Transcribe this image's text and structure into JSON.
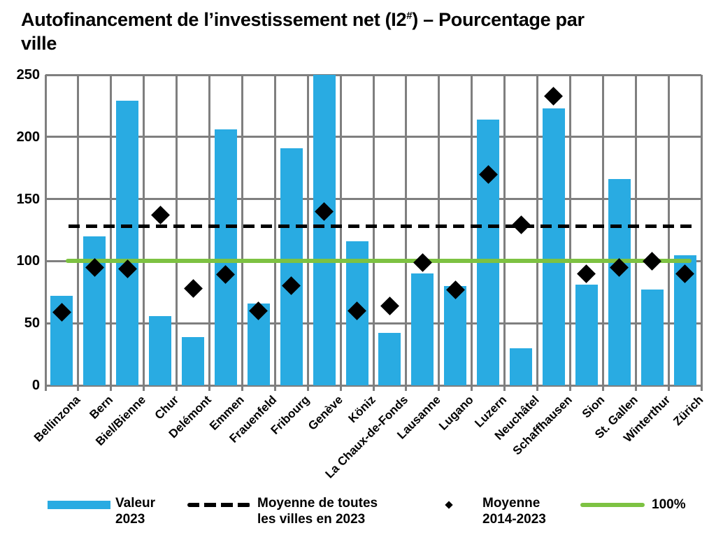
{
  "title": {
    "line1_pre": "Autofinancement de l’investissement net (I2",
    "line1_sup": "#",
    "line1_post": ") – Pourcentage par",
    "line2": "ville"
  },
  "y_axis": {
    "ticks": [
      "0",
      "50",
      "100",
      "150",
      "200",
      "250"
    ]
  },
  "chart_data": {
    "type": "bar",
    "title": "Autofinancement de l’investissement net (I2#) – Pourcentage par ville",
    "categories": [
      "Bellinzona",
      "Bern",
      "Biel/Bienne",
      "Chur",
      "Delémont",
      "Emmen",
      "Frauenfeld",
      "Fribourg",
      "Genève",
      "Köniz",
      "La Chaux-de-Fonds",
      "Lausanne",
      "Lugano",
      "Luzern",
      "Neuchâtel",
      "Schaffhausen",
      "Sion",
      "St. Gallen",
      "Winterthur",
      "Zürich"
    ],
    "series": [
      {
        "name": "Valeur 2023",
        "type": "bar",
        "color": "#29ABE2",
        "values": [
          72,
          120,
          229,
          56,
          39,
          206,
          66,
          191,
          250,
          116,
          42,
          90,
          80,
          214,
          30,
          223,
          81,
          166,
          77,
          105
        ],
        "clipped_at_max": [
          "Genève"
        ]
      },
      {
        "name": "Moyenne 2014-2023",
        "type": "scatter-diamond",
        "color": "#000000",
        "values": [
          59,
          95,
          94,
          137,
          78,
          89,
          60,
          80,
          140,
          60,
          64,
          99,
          77,
          170,
          129,
          233,
          90,
          95,
          100,
          90
        ]
      }
    ],
    "reference_lines": [
      {
        "name": "Moyenne de toutes les villes en 2023",
        "value": 128,
        "style": "dashed",
        "color": "#000000"
      },
      {
        "name": "100%",
        "value": 100,
        "style": "solid",
        "color": "#7DC242"
      }
    ],
    "ylim": [
      0,
      250
    ],
    "ytick_step": 50,
    "grid": true,
    "legend_position": "bottom"
  },
  "legend": {
    "items": [
      {
        "swatch": "bar",
        "label": "Valeur\n2023"
      },
      {
        "swatch": "dashed-line",
        "label": "Moyenne de toutes\nles villes en 2023"
      },
      {
        "swatch": "diamond",
        "label": "Moyenne\n2014-2023"
      },
      {
        "swatch": "green-line",
        "label": "100%"
      }
    ]
  }
}
